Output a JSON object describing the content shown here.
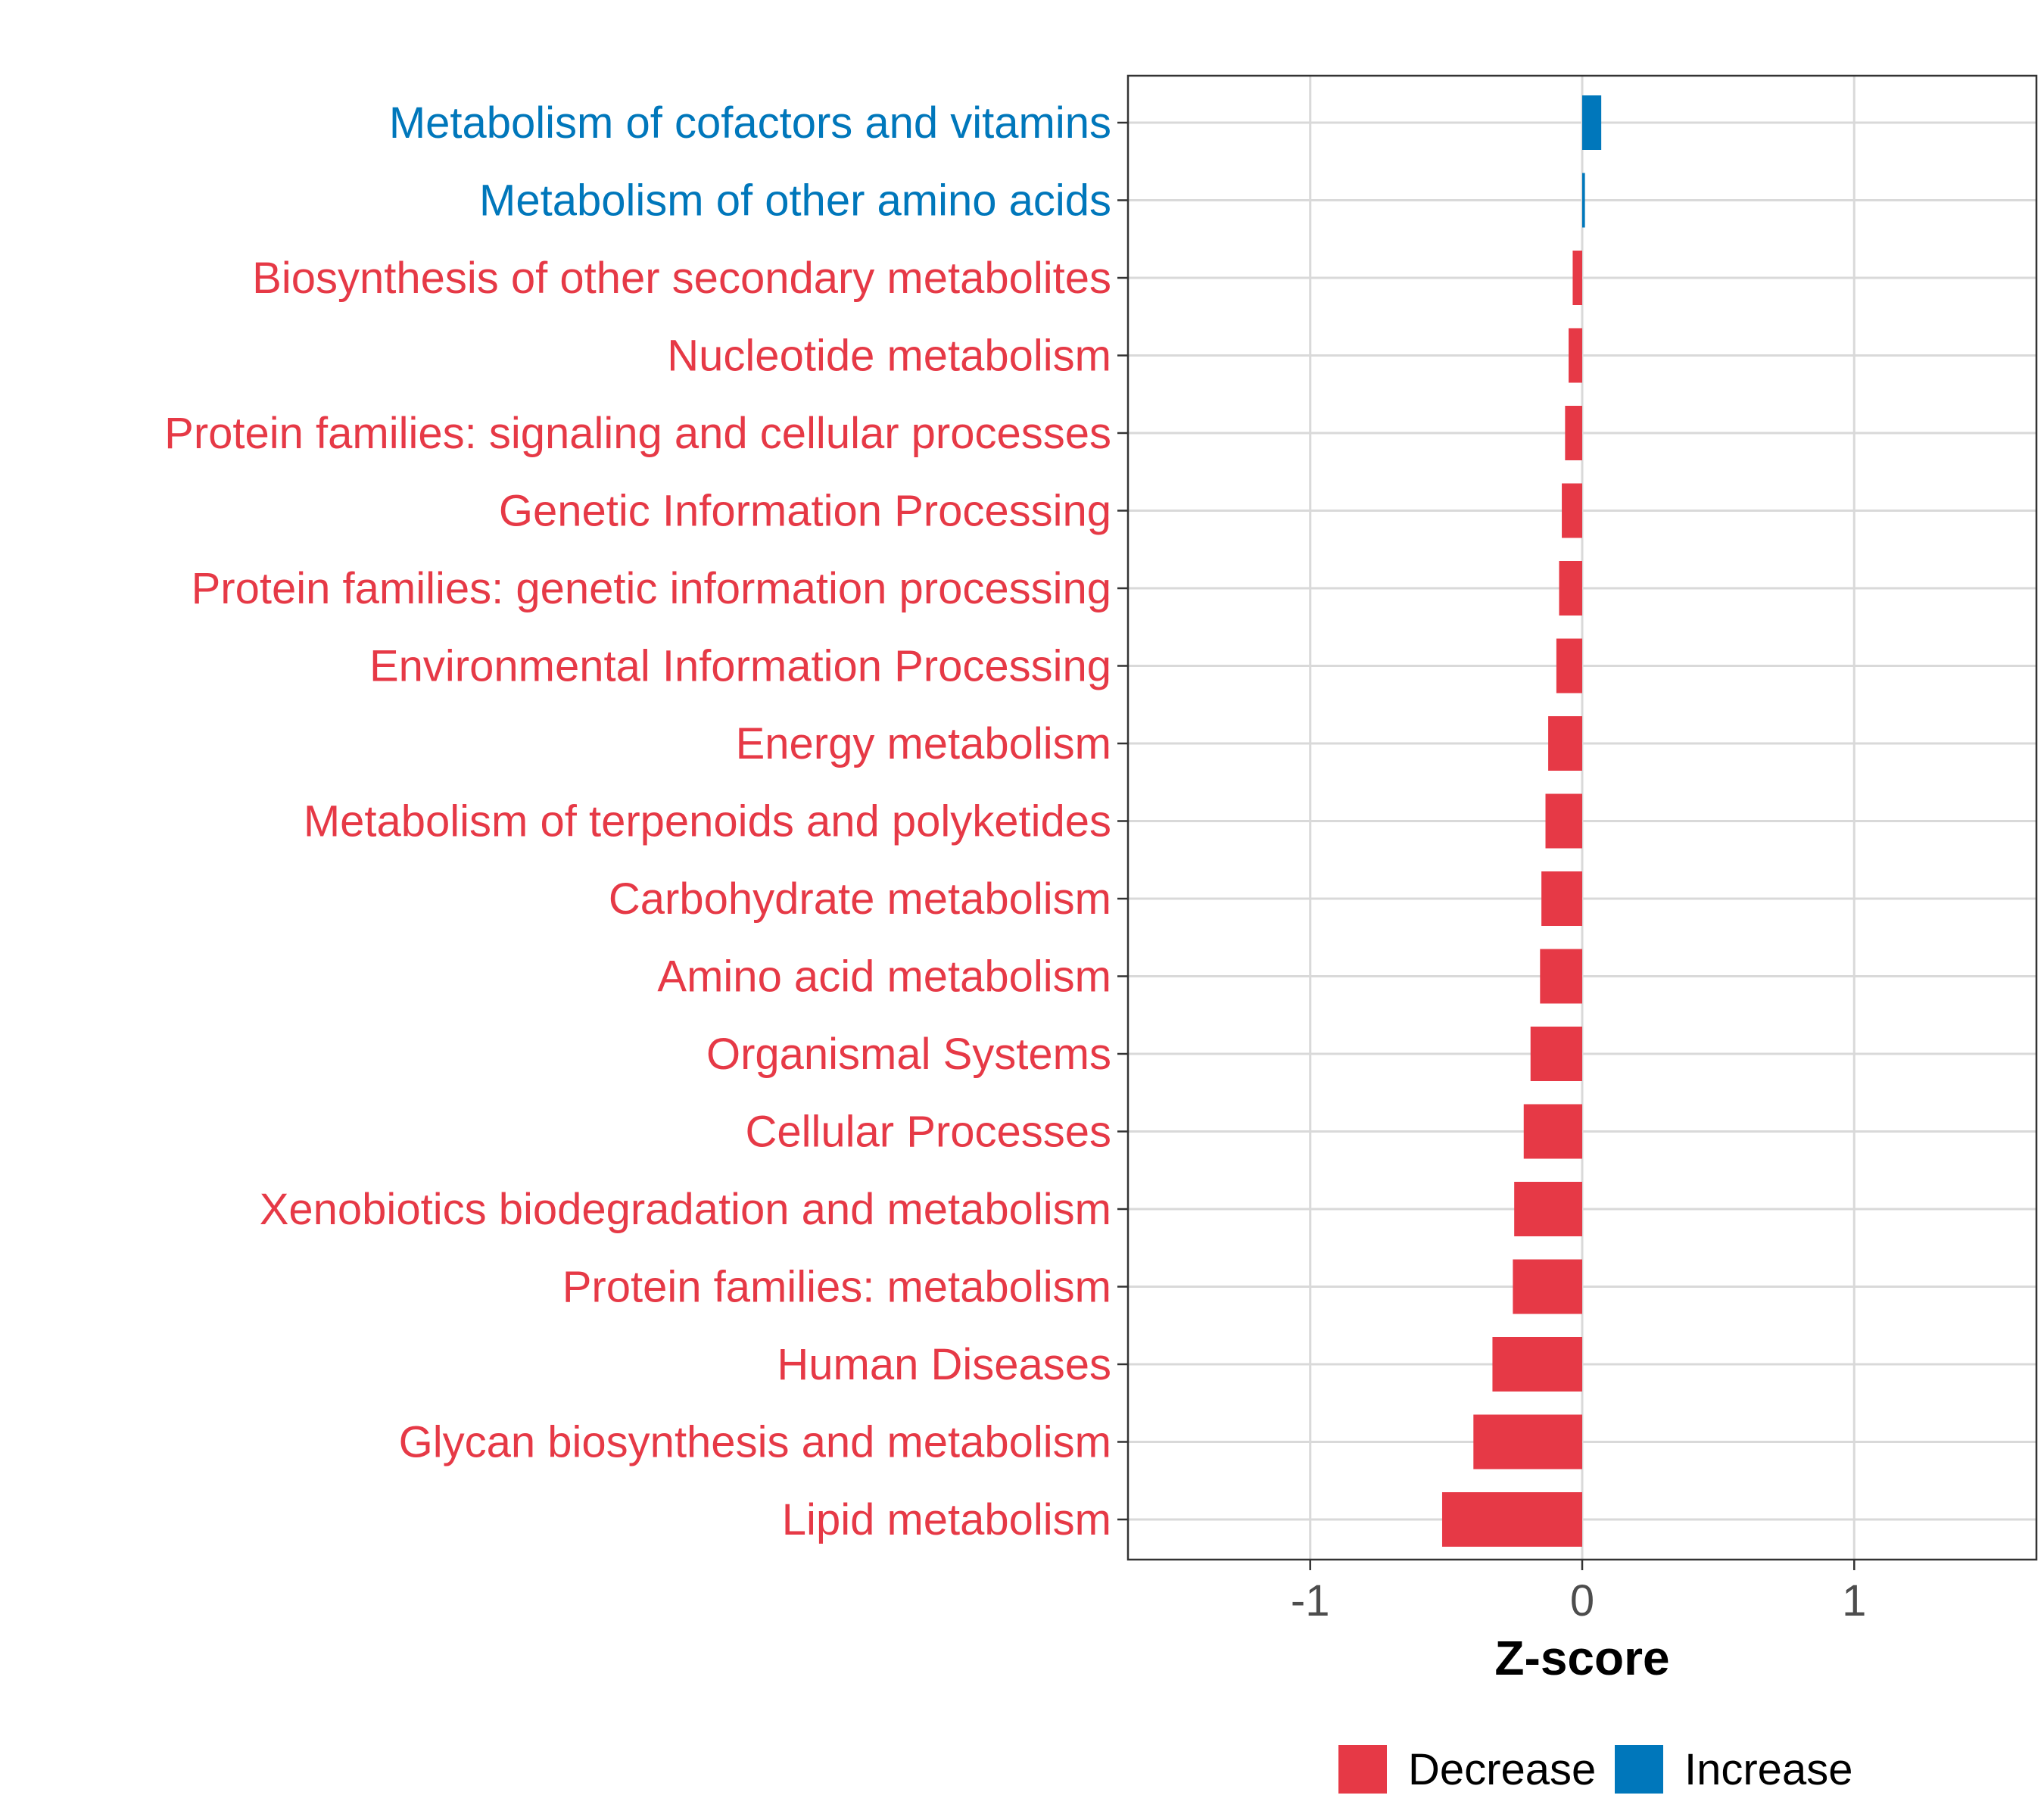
{
  "chart_data": {
    "type": "bar",
    "orientation": "horizontal",
    "title": "",
    "xlabel": "Z-score",
    "ylabel": "",
    "xlim": [
      -1.67,
      1.67
    ],
    "xticks": [
      -1,
      0,
      1
    ],
    "xtick_labels": [
      "-1",
      "0",
      "1"
    ],
    "grid": true,
    "legend_position": "bottom",
    "categories": [
      "Metabolism of cofactors and vitamins",
      "Metabolism of other amino acids",
      "Biosynthesis of other secondary metabolites",
      "Nucleotide metabolism",
      "Protein families: signaling and cellular processes",
      "Genetic Information Processing",
      "Protein families: genetic information processing",
      "Environmental Information Processing",
      "Energy metabolism",
      "Metabolism of terpenoids and polyketides",
      "Carbohydrate metabolism",
      "Amino acid metabolism",
      "Organismal Systems",
      "Cellular Processes",
      "Xenobiotics biodegradation and metabolism",
      "Protein families: metabolism",
      "Human Diseases",
      "Glycan biosynthesis and metabolism",
      "Lipid metabolism"
    ],
    "values": [
      0.07,
      0.01,
      -0.035,
      -0.05,
      -0.063,
      -0.075,
      -0.085,
      -0.095,
      -0.125,
      -0.135,
      -0.15,
      -0.155,
      -0.19,
      -0.215,
      -0.25,
      -0.255,
      -0.33,
      -0.4,
      -0.515
    ],
    "groups": [
      "Increase",
      "Increase",
      "Decrease",
      "Decrease",
      "Decrease",
      "Decrease",
      "Decrease",
      "Decrease",
      "Decrease",
      "Decrease",
      "Decrease",
      "Decrease",
      "Decrease",
      "Decrease",
      "Decrease",
      "Decrease",
      "Decrease",
      "Decrease",
      "Decrease"
    ],
    "legend": [
      {
        "name": "Decrease",
        "color": "#E63946"
      },
      {
        "name": "Increase",
        "color": "#0077BB"
      }
    ]
  }
}
